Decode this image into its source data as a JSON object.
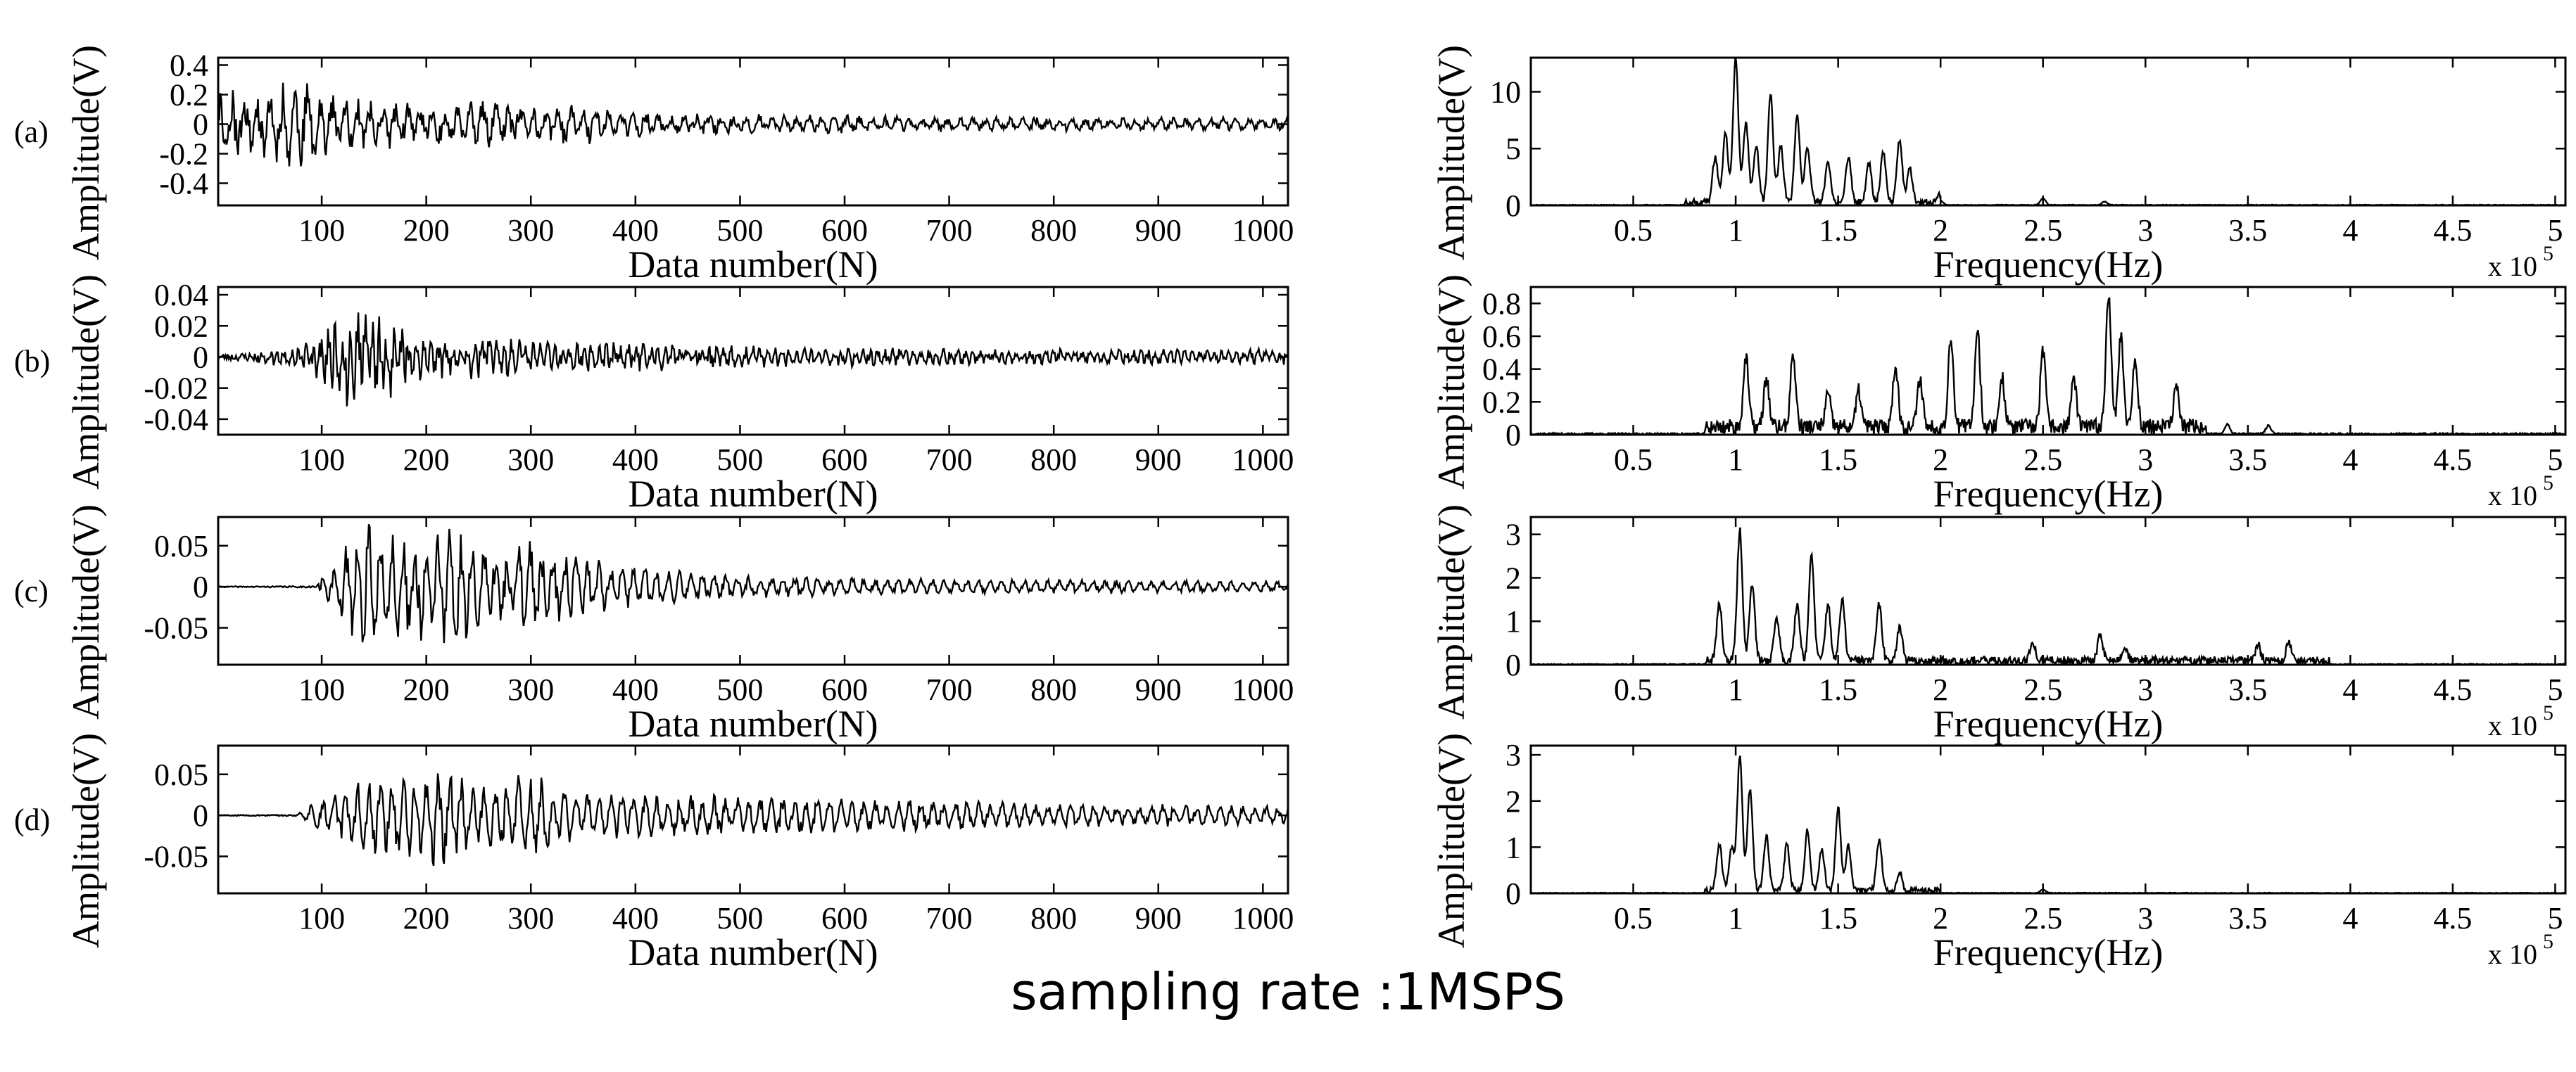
{
  "caption": "sampling rate :1MSPS",
  "chart_data": [
    {
      "id": "a-time",
      "panel_label": "(a)",
      "type": "line",
      "xlabel": "Data number(N)",
      "ylabel": "Amplitude(V)",
      "xlim": [
        1,
        1024
      ],
      "ylim": [
        -0.55,
        0.45
      ],
      "xticks": [
        100,
        200,
        300,
        400,
        500,
        600,
        700,
        800,
        900,
        1000
      ],
      "yticks": [
        -0.4,
        -0.2,
        0,
        0.2,
        0.4
      ],
      "ytick_labels": [
        "-0.4",
        "-0.2",
        "0",
        "0.2",
        "0.4"
      ],
      "kind": "time",
      "signal": {
        "seed": 11,
        "onset": 1,
        "envelope": [
          [
            1,
            0.2
          ],
          [
            40,
            0.18
          ],
          [
            70,
            0.26
          ],
          [
            120,
            0.14
          ],
          [
            200,
            0.12
          ],
          [
            260,
            0.13
          ],
          [
            300,
            0.1
          ],
          [
            360,
            0.13
          ],
          [
            380,
            0.09
          ],
          [
            450,
            0.06
          ],
          [
            580,
            0.05
          ],
          [
            700,
            0.04
          ],
          [
            1024,
            0.035
          ]
        ],
        "period": 12,
        "noise": 0.6
      }
    },
    {
      "id": "a-freq",
      "type": "line",
      "xlabel": "Frequency(Hz)",
      "ylabel": "Amplitude(V)",
      "xlim": [
        0,
        5.05
      ],
      "ylim": [
        0,
        13
      ],
      "xticks": [
        0.5,
        1,
        1.5,
        2,
        2.5,
        3,
        3.5,
        4,
        4.5,
        5
      ],
      "xtick_labels": [
        "0.5",
        "1",
        "1.5",
        "2",
        "2.5",
        "3",
        "3.5",
        "4",
        "4.5",
        "5"
      ],
      "yticks": [
        0,
        5,
        10
      ],
      "ytick_labels": [
        "0",
        "5",
        "10"
      ],
      "x_multiplier": "x 10",
      "x_multiplier_exp": "5",
      "kind": "spectrum",
      "peaks": [
        [
          0.9,
          4
        ],
        [
          0.95,
          6
        ],
        [
          1.0,
          12.8
        ],
        [
          1.05,
          7
        ],
        [
          1.1,
          5
        ],
        [
          1.17,
          9.5
        ],
        [
          1.22,
          5
        ],
        [
          1.3,
          7.5
        ],
        [
          1.35,
          5
        ],
        [
          1.45,
          3.5
        ],
        [
          1.55,
          4
        ],
        [
          1.65,
          3.5
        ],
        [
          1.72,
          4.5
        ],
        [
          1.8,
          5.5
        ],
        [
          1.85,
          3
        ],
        [
          2.0,
          0.8
        ],
        [
          2.5,
          1.2
        ],
        [
          2.8,
          0.6
        ]
      ],
      "spectrum_seed": 21,
      "noise_level": 0.35,
      "band": [
        0.75,
        2.0
      ]
    },
    {
      "id": "b-time",
      "panel_label": "(b)",
      "type": "line",
      "xlabel": "Data number(N)",
      "ylabel": "Amplitude(V)",
      "xlim": [
        1,
        1024
      ],
      "ylim": [
        -0.05,
        0.045
      ],
      "xticks": [
        100,
        200,
        300,
        400,
        500,
        600,
        700,
        800,
        900,
        1000
      ],
      "yticks": [
        -0.04,
        -0.02,
        0,
        0.02,
        0.04
      ],
      "ytick_labels": [
        "-0.04",
        "-0.02",
        "0",
        "0.02",
        "0.04"
      ],
      "kind": "time",
      "signal": {
        "seed": 23,
        "onset": 40,
        "envelope": [
          [
            1,
            0.002
          ],
          [
            40,
            0.003
          ],
          [
            80,
            0.006
          ],
          [
            110,
            0.018
          ],
          [
            120,
            0.026
          ],
          [
            160,
            0.022
          ],
          [
            200,
            0.012
          ],
          [
            300,
            0.009
          ],
          [
            400,
            0.007
          ],
          [
            500,
            0.006
          ],
          [
            600,
            0.005
          ],
          [
            800,
            0.004
          ],
          [
            1024,
            0.004
          ]
        ],
        "period": 7,
        "noise": 0.7
      }
    },
    {
      "id": "b-freq",
      "type": "line",
      "xlabel": "Frequency(Hz)",
      "ylabel": "Amplitude(V)",
      "xlim": [
        0,
        5.05
      ],
      "ylim": [
        0,
        0.9
      ],
      "xticks": [
        0.5,
        1,
        1.5,
        2,
        2.5,
        3,
        3.5,
        4,
        4.5,
        5
      ],
      "xtick_labels": [
        "0.5",
        "1",
        "1.5",
        "2",
        "2.5",
        "3",
        "3.5",
        "4",
        "4.5",
        "5"
      ],
      "yticks": [
        0,
        0.2,
        0.4,
        0.6,
        0.8
      ],
      "ytick_labels": [
        "0",
        "0.2",
        "0.4",
        "0.6",
        "0.8"
      ],
      "x_multiplier": "x 10",
      "x_multiplier_exp": "5",
      "kind": "spectrum",
      "peaks": [
        [
          1.05,
          0.42
        ],
        [
          1.15,
          0.3
        ],
        [
          1.28,
          0.44
        ],
        [
          1.45,
          0.2
        ],
        [
          1.6,
          0.22
        ],
        [
          1.78,
          0.38
        ],
        [
          1.9,
          0.3
        ],
        [
          2.05,
          0.55
        ],
        [
          2.18,
          0.6
        ],
        [
          2.3,
          0.3
        ],
        [
          2.5,
          0.46
        ],
        [
          2.65,
          0.3
        ],
        [
          2.82,
          0.82
        ],
        [
          2.88,
          0.55
        ],
        [
          2.95,
          0.4
        ],
        [
          3.15,
          0.25
        ],
        [
          3.4,
          0.12
        ],
        [
          3.6,
          0.1
        ]
      ],
      "spectrum_seed": 37,
      "noise_level": 0.06,
      "band": [
        0.85,
        3.3
      ]
    },
    {
      "id": "c-time",
      "panel_label": "(c)",
      "type": "line",
      "xlabel": "Data number(N)",
      "ylabel": "Amplitude(V)",
      "xlim": [
        1,
        1024
      ],
      "ylim": [
        -0.095,
        0.085
      ],
      "xticks": [
        100,
        200,
        300,
        400,
        500,
        600,
        700,
        800,
        900,
        1000
      ],
      "yticks": [
        -0.05,
        0,
        0.05
      ],
      "ytick_labels": [
        "-0.05",
        "0",
        "0.05"
      ],
      "kind": "time",
      "signal": {
        "seed": 41,
        "onset": 100,
        "envelope": [
          [
            1,
            0.0005
          ],
          [
            95,
            0.001
          ],
          [
            110,
            0.03
          ],
          [
            150,
            0.075
          ],
          [
            180,
            0.055
          ],
          [
            220,
            0.07
          ],
          [
            260,
            0.04
          ],
          [
            310,
            0.05
          ],
          [
            340,
            0.035
          ],
          [
            400,
            0.02
          ],
          [
            500,
            0.012
          ],
          [
            700,
            0.008
          ],
          [
            1024,
            0.006
          ]
        ],
        "period": 11,
        "noise": 0.4
      }
    },
    {
      "id": "c-freq",
      "type": "line",
      "xlabel": "Frequency(Hz)",
      "ylabel": "Amplitude(V)",
      "xlim": [
        0,
        5.05
      ],
      "ylim": [
        0,
        3.4
      ],
      "xticks": [
        0.5,
        1,
        1.5,
        2,
        2.5,
        3,
        3.5,
        4,
        4.5,
        5
      ],
      "xtick_labels": [
        "0.5",
        "1",
        "1.5",
        "2",
        "2.5",
        "3",
        "3.5",
        "4",
        "4.5",
        "5"
      ],
      "yticks": [
        0,
        1,
        2,
        3
      ],
      "ytick_labels": [
        "0",
        "1",
        "2",
        "3"
      ],
      "x_multiplier": "x 10",
      "x_multiplier_exp": "5",
      "kind": "spectrum",
      "peaks": [
        [
          0.92,
          1.3
        ],
        [
          1.02,
          3.0
        ],
        [
          1.08,
          1.8
        ],
        [
          1.2,
          1.0
        ],
        [
          1.3,
          1.3
        ],
        [
          1.37,
          2.4
        ],
        [
          1.45,
          1.3
        ],
        [
          1.52,
          1.4
        ],
        [
          1.7,
          1.3
        ],
        [
          1.8,
          0.8
        ],
        [
          2.45,
          0.4
        ],
        [
          2.78,
          0.6
        ],
        [
          2.9,
          0.3
        ],
        [
          3.55,
          0.35
        ],
        [
          3.7,
          0.4
        ]
      ],
      "spectrum_seed": 53,
      "noise_level": 0.12,
      "band": [
        0.85,
        3.9
      ]
    },
    {
      "id": "d-time",
      "panel_label": "(d)",
      "type": "line",
      "xlabel": "Data number(N)",
      "ylabel": "Amplitude(V)",
      "xlim": [
        1,
        1024
      ],
      "ylim": [
        -0.095,
        0.085
      ],
      "xticks": [
        100,
        200,
        300,
        400,
        500,
        600,
        700,
        800,
        900,
        1000
      ],
      "yticks": [
        -0.05,
        0,
        0.05
      ],
      "ytick_labels": [
        "-0.05",
        "0",
        "0.05"
      ],
      "kind": "time",
      "signal": {
        "seed": 59,
        "onset": 75,
        "envelope": [
          [
            1,
            0.0005
          ],
          [
            75,
            0.001
          ],
          [
            100,
            0.02
          ],
          [
            150,
            0.04
          ],
          [
            200,
            0.045
          ],
          [
            210,
            0.06
          ],
          [
            250,
            0.03
          ],
          [
            300,
            0.045
          ],
          [
            350,
            0.025
          ],
          [
            450,
            0.022
          ],
          [
            600,
            0.018
          ],
          [
            800,
            0.013
          ],
          [
            1024,
            0.01
          ]
        ],
        "period": 11,
        "noise": 0.4
      }
    },
    {
      "id": "d-freq",
      "type": "line",
      "xlabel": "Frequency(Hz)",
      "ylabel": "Amplitude(V)",
      "xlim": [
        0,
        5.05
      ],
      "ylim": [
        0,
        3.2
      ],
      "xticks": [
        0.5,
        1,
        1.5,
        2,
        2.5,
        3,
        3.5,
        4,
        4.5,
        5
      ],
      "xtick_labels": [
        "0.5",
        "1",
        "1.5",
        "2",
        "2.5",
        "3",
        "3.5",
        "4",
        "4.5",
        "5"
      ],
      "yticks": [
        0,
        1,
        2,
        3
      ],
      "ytick_labels": [
        "0",
        "1",
        "2",
        "3"
      ],
      "x_multiplier": "x 10",
      "x_multiplier_exp": "5",
      "kind": "spectrum",
      "peaks": [
        [
          0.92,
          1.0
        ],
        [
          0.98,
          0.9
        ],
        [
          1.02,
          2.9
        ],
        [
          1.07,
          2.2
        ],
        [
          1.15,
          1.2
        ],
        [
          1.25,
          1.0
        ],
        [
          1.35,
          1.3
        ],
        [
          1.42,
          0.9
        ],
        [
          1.5,
          1.8
        ],
        [
          1.55,
          1.0
        ],
        [
          1.7,
          1.1
        ],
        [
          1.8,
          0.4
        ],
        [
          2.5,
          0.15
        ]
      ],
      "spectrum_seed": 67,
      "noise_level": 0.08,
      "band": [
        0.85,
        2.0
      ]
    }
  ]
}
